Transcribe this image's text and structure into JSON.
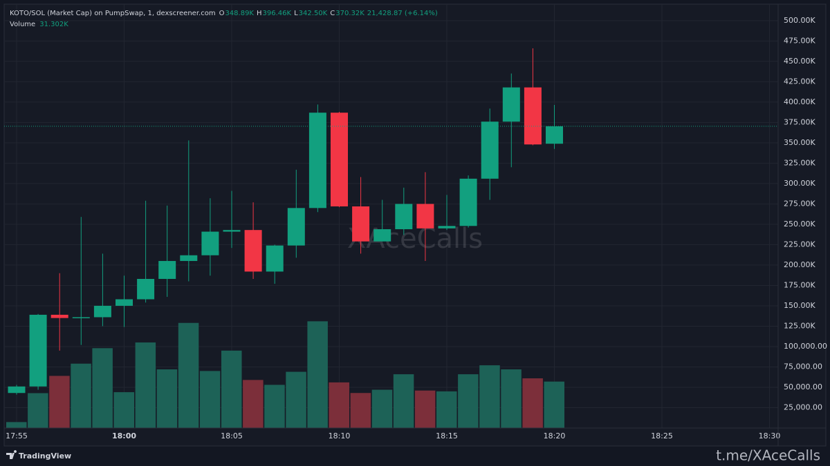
{
  "chart_data": {
    "type": "candlestick",
    "title": "KOTO/SOL (Market Cap) on PumpSwap, 1, dexscreener.com",
    "ohlc_legend": [
      {
        "label": "O",
        "value": "348.89K"
      },
      {
        "label": "H",
        "value": "396.46K"
      },
      {
        "label": "L",
        "value": "342.50K"
      },
      {
        "label": "C",
        "value": "370.32K"
      }
    ],
    "change": "21,428.87 (+6.14%)",
    "volume_legend": {
      "label": "Volume",
      "value": "31.302K"
    },
    "watermark": "XAceCalls",
    "brand": "TradingView",
    "footer": "t.me/XAceCalls",
    "categories": [
      "17:55",
      null,
      null,
      null,
      null,
      "18:00",
      null,
      null,
      null,
      null,
      "18:05",
      null,
      null,
      null,
      null,
      "18:10",
      null,
      null,
      null,
      null,
      "18:15",
      null,
      null,
      null,
      null,
      "18:20",
      null,
      null,
      null,
      null,
      "18:25",
      null,
      null,
      null,
      null,
      "18:30"
    ],
    "open": [
      43000,
      51000,
      139000,
      135000,
      136000,
      150000,
      158000,
      183000,
      205000,
      212000,
      241000,
      243000,
      192000,
      224000,
      270000,
      387000,
      272000,
      229000,
      244000,
      275000,
      245000,
      248000,
      306000,
      376000,
      418000,
      348890,
      null,
      null,
      null,
      null,
      null,
      null,
      null,
      null,
      null,
      null
    ],
    "high": [
      53000,
      140000,
      190000,
      259000,
      214000,
      187000,
      279000,
      273000,
      353000,
      282000,
      291000,
      277000,
      225000,
      317000,
      397000,
      388000,
      308000,
      280000,
      295000,
      314000,
      286000,
      310000,
      392000,
      435000,
      466000,
      396460,
      null,
      null,
      null,
      null,
      null,
      null,
      null,
      null,
      null,
      null
    ],
    "low": [
      41000,
      47000,
      95000,
      102000,
      125000,
      124000,
      154000,
      161000,
      180000,
      187000,
      221000,
      183000,
      177000,
      209000,
      265000,
      271000,
      214000,
      229000,
      237000,
      205000,
      243000,
      246000,
      280000,
      320000,
      347000,
      342500,
      null,
      null,
      null,
      null,
      null,
      null,
      null,
      null,
      null,
      null
    ],
    "close": [
      51000,
      139000,
      135000,
      136000,
      150000,
      158000,
      183000,
      205000,
      212000,
      241000,
      243000,
      192000,
      224000,
      270000,
      387000,
      272000,
      229000,
      244000,
      275000,
      245000,
      248000,
      306000,
      376000,
      418000,
      348000,
      370320,
      null,
      null,
      null,
      null,
      null,
      null,
      null,
      null,
      null,
      null
    ],
    "volume": [
      7300,
      42800,
      64000,
      79000,
      98000,
      44000,
      105000,
      72000,
      129000,
      70000,
      95000,
      59000,
      53000,
      69000,
      131000,
      56000,
      43000,
      47000,
      66000,
      46000,
      45000,
      66000,
      77000,
      72000,
      61000,
      57000,
      null,
      null,
      null,
      null,
      null,
      null,
      null,
      null,
      null,
      null
    ],
    "up_color": "#12a07f",
    "down_color": "#f23645",
    "up_volume_color": "#1d6257",
    "down_volume_color": "#7c2f3a",
    "last_price_line": true,
    "ylim": [
      0,
      518500
    ],
    "yticks": [
      {
        "value": 25000,
        "label": "25,000.00"
      },
      {
        "value": 50000,
        "label": "50,000.00"
      },
      {
        "value": 75000,
        "label": "75,000.00"
      },
      {
        "value": 100000,
        "label": "100,000.00"
      },
      {
        "value": 125000,
        "label": "125.00K"
      },
      {
        "value": 150000,
        "label": "150.00K"
      },
      {
        "value": 175000,
        "label": "175.00K"
      },
      {
        "value": 200000,
        "label": "200.00K"
      },
      {
        "value": 225000,
        "label": "225.00K"
      },
      {
        "value": 250000,
        "label": "250.00K"
      },
      {
        "value": 275000,
        "label": "275.00K"
      },
      {
        "value": 300000,
        "label": "300.00K"
      },
      {
        "value": 325000,
        "label": "325.00K"
      },
      {
        "value": 350000,
        "label": "350.00K"
      },
      {
        "value": 375000,
        "label": "375.00K"
      },
      {
        "value": 400000,
        "label": "400.00K"
      },
      {
        "value": 425000,
        "label": "425.00K"
      },
      {
        "value": 450000,
        "label": "450.00K"
      },
      {
        "value": 475000,
        "label": "475.00K"
      },
      {
        "value": 500000,
        "label": "500.00K"
      }
    ],
    "grid": true
  }
}
